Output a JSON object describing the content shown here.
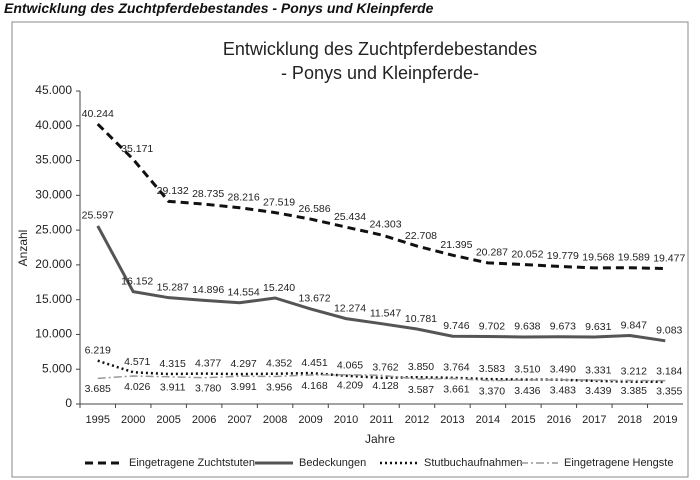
{
  "header": {
    "title": "Entwicklung des Zuchtpferdebestandes - Ponys und Kleinpferde"
  },
  "chart_data": {
    "type": "line",
    "title": [
      "Entwicklung des Zuchtpferdebestandes",
      "- Ponys und Kleinpferde-"
    ],
    "x_label": "Jahre",
    "y_label": "Anzahl",
    "categories": [
      "1995",
      "2000",
      "2005",
      "2006",
      "2007",
      "2008",
      "2009",
      "2010",
      "2011",
      "2012",
      "2013",
      "2014",
      "2015",
      "2016",
      "2017",
      "2018",
      "2019"
    ],
    "ylim": [
      0,
      45000
    ],
    "yticks": [
      0,
      {
        "value": 5000,
        "label": "5.000"
      },
      {
        "value": 10000,
        "label": "10.000"
      },
      {
        "value": 15000,
        "label": "15.000"
      },
      {
        "value": 20000,
        "label": "20.000"
      },
      {
        "value": 25000,
        "label": "25.000"
      },
      {
        "value": 30000,
        "label": "30.000"
      },
      {
        "value": 35000,
        "label": "35.000"
      },
      {
        "value": 40000,
        "label": "40.000"
      },
      {
        "value": 45000,
        "label": "45.000"
      }
    ],
    "grid": false,
    "legend": "bottom",
    "series": [
      {
        "name": "Eingetragene Zuchtstuten",
        "color": "#111111",
        "line_style": "dashed",
        "values": [
          40244,
          35171,
          29132,
          28735,
          28216,
          27519,
          26586,
          25434,
          24303,
          22708,
          21395,
          20287,
          20052,
          19779,
          19568,
          19589,
          19477
        ],
        "value_labels": [
          "40.244",
          "35.171",
          "29.132",
          "28.735",
          "28.216",
          "27.519",
          "26.586",
          "25.434",
          "24.303",
          "22.708",
          "21.395",
          "20.287",
          "20.052",
          "19.779",
          "19.568",
          "19.589",
          "19.477"
        ]
      },
      {
        "name": "Bedeckungen",
        "color": "#555555",
        "line_style": "solid",
        "values": [
          25597,
          16152,
          15287,
          14896,
          14554,
          15240,
          13672,
          12274,
          11547,
          10781,
          9746,
          9702,
          9638,
          9673,
          9631,
          9847,
          9083
        ],
        "value_labels": [
          "25.597",
          "16.152",
          "15.287",
          "14.896",
          "14.554",
          "15.240",
          "13.672",
          "12.274",
          "11.547",
          "10.781",
          "9.746",
          "9.702",
          "9.638",
          "9.673",
          "9.631",
          "9.847",
          "9.083"
        ]
      },
      {
        "name": "Stutbuchaufnahmen",
        "color": "#111111",
        "line_style": "dotted",
        "values": [
          6219,
          4571,
          4315,
          4377,
          4297,
          4352,
          4451,
          4065,
          3762,
          3850,
          3764,
          3583,
          3510,
          3490,
          3331,
          3212,
          3184
        ],
        "value_labels": [
          "6.219",
          "4.571",
          "4.315",
          "4.377",
          "4.297",
          "4.352",
          "4.451",
          "4.065",
          "3.762",
          "3.850",
          "3.764",
          "3.583",
          "3.510",
          "3.490",
          "3.331",
          "3.212",
          "3.184"
        ]
      },
      {
        "name": "Eingetragene Hengste",
        "color": "#999999",
        "line_style": "dashdot",
        "values": [
          3685,
          4026,
          3911,
          3780,
          3991,
          3956,
          4168,
          4209,
          4128,
          3587,
          3661,
          3370,
          3436,
          3483,
          3439,
          3385,
          3355
        ],
        "value_labels": [
          "3.685",
          "4.026",
          "3.911",
          "3.780",
          "3.991",
          "3.956",
          "4.168",
          "4.209",
          "4.128",
          "3.587",
          "3.661",
          "3.370",
          "3.436",
          "3.483",
          "3.439",
          "3.385",
          "3.355"
        ]
      }
    ]
  }
}
